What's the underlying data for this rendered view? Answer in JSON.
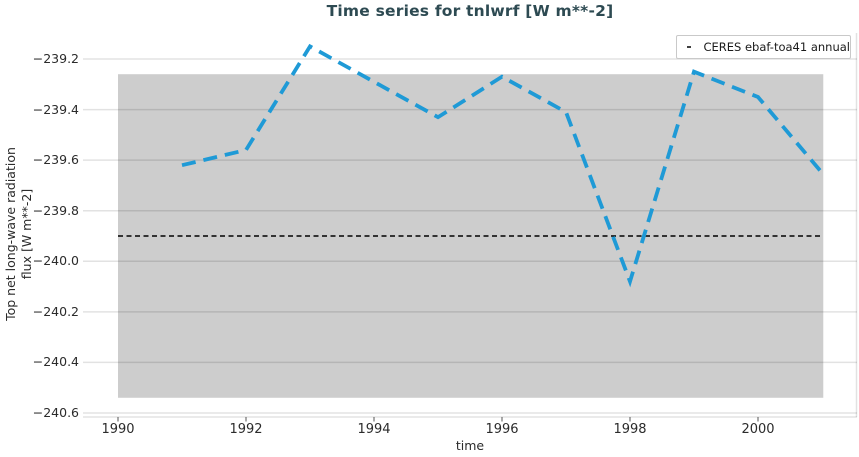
{
  "title": "Time series for tnlwrf [W m**-2]",
  "legend": {
    "label": "CERES ebaf-toa41 annual"
  },
  "axes": {
    "xlabel": "time",
    "ylabel_line1": "Top net long-wave radiation",
    "ylabel_line2": "flux [W m**-2]",
    "x_ticks": [
      1990,
      1992,
      1994,
      1996,
      1998,
      2000
    ],
    "y_ticks": [
      -239.2,
      -239.4,
      -239.6,
      -239.8,
      -240.0,
      -240.2,
      -240.4,
      -240.6
    ]
  },
  "colors": {
    "series_blue": "#1f9ad6",
    "reference_black": "#000000",
    "band_gray": "#cdcdcd",
    "grid": "rgba(0,0,0,0.115)",
    "tick_mark": "#555555",
    "title_color": "#2d4a52"
  },
  "chart_data": {
    "type": "line",
    "title": "Time series for tnlwrf [W m**-2]",
    "xlabel": "time",
    "ylabel": "Top net long-wave radiation flux [W m**-2]",
    "x_range": [
      1989.453,
      2001.547
    ],
    "y_range": [
      -240.616,
      -239.097
    ],
    "grid": true,
    "legend_position": "top-right",
    "series": [
      {
        "name": "tnlwrf",
        "style": "dashed",
        "color": "#1f9ad6",
        "x": [
          1991,
          1992,
          1993,
          1994,
          1995,
          1996,
          1997,
          1998,
          1999,
          2000,
          2001
        ],
        "y": [
          -239.62,
          -239.56,
          -239.15,
          -239.29,
          -239.43,
          -239.27,
          -239.41,
          -240.08,
          -239.25,
          -239.35,
          -239.65
        ]
      },
      {
        "name": "CERES ebaf-toa41 annual",
        "style": "dashed",
        "color": "#000000",
        "kind": "hline",
        "value": -239.9,
        "x": [
          1990,
          2001.02
        ],
        "y": [
          -239.9,
          -239.9
        ]
      }
    ],
    "band": {
      "x": [
        1990,
        2001.02
      ],
      "y_low": -240.54,
      "y_high": -239.26,
      "color": "#cdcdcd"
    }
  }
}
